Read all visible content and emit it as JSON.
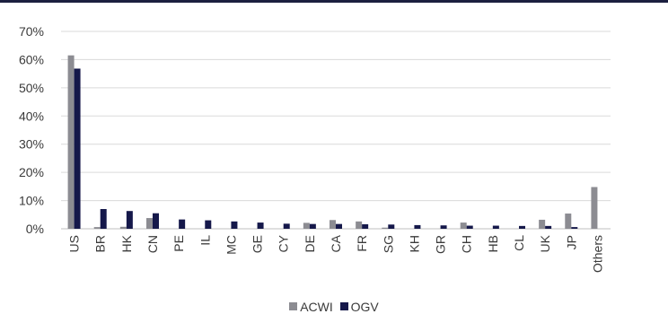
{
  "chart_data": {
    "type": "bar",
    "title": "",
    "xlabel": "",
    "ylabel": "",
    "categories": [
      "US",
      "BR",
      "HK",
      "CN",
      "PE",
      "IL",
      "MC",
      "GE",
      "CY",
      "DE",
      "CA",
      "FR",
      "SG",
      "KH",
      "GR",
      "CH",
      "HB",
      "CL",
      "UK",
      "JP",
      "Others"
    ],
    "series": [
      {
        "name": "ACWI",
        "color": "#8c8c92",
        "values": [
          61.5,
          0.6,
          0.7,
          3.8,
          0,
          0,
          0,
          0,
          0,
          2.1,
          3.1,
          2.6,
          0.4,
          0,
          0,
          2.2,
          0,
          0,
          3.2,
          5.4,
          14.8
        ]
      },
      {
        "name": "OGV",
        "color": "#15184a",
        "values": [
          56.8,
          7.0,
          6.3,
          5.5,
          3.3,
          3.0,
          2.6,
          2.2,
          1.8,
          1.7,
          1.7,
          1.6,
          1.5,
          1.3,
          1.2,
          1.1,
          1.1,
          1.0,
          1.0,
          0.6,
          0
        ]
      }
    ],
    "yticks": [
      "0%",
      "10%",
      "20%",
      "30%",
      "40%",
      "50%",
      "60%",
      "70%"
    ],
    "ylim": [
      0,
      70
    ],
    "grid": true,
    "legend_position": "bottom"
  }
}
